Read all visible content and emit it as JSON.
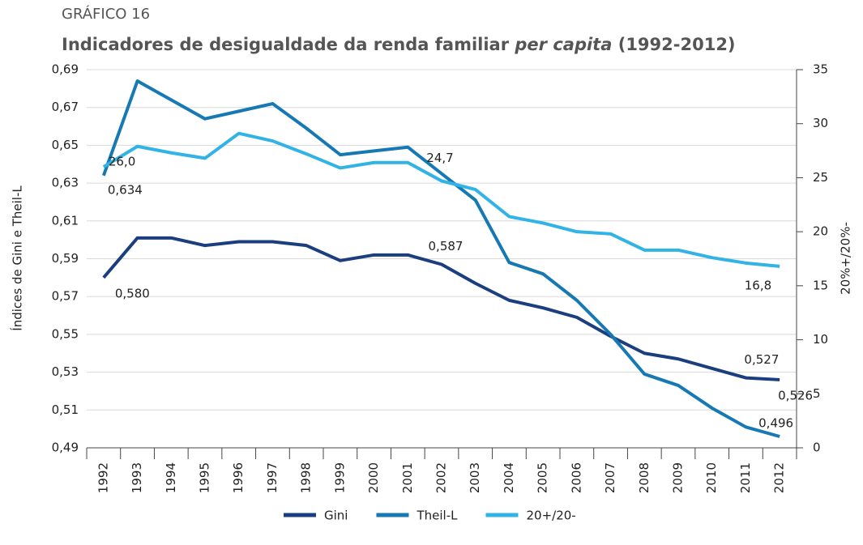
{
  "chart_data": {
    "type": "line",
    "kicker": "GRÁFICO 16",
    "title_parts": [
      "Indicadores de desigualdade da renda familiar",
      "per capita",
      "(1992-2012)"
    ],
    "y_label": "Índices de Gini e Theil-L",
    "y2_label": "20%+/20%-",
    "categories": [
      "1992",
      "1993",
      "1994",
      "1995",
      "1996",
      "1997",
      "1998",
      "1999",
      "2000",
      "2001",
      "2002",
      "2003",
      "2004",
      "2005",
      "2006",
      "2007",
      "2008",
      "2009",
      "2010",
      "2011",
      "2012"
    ],
    "ylim": [
      0.49,
      0.69
    ],
    "yticks": [
      {
        "value": 0.49,
        "label": "0,49"
      },
      {
        "value": 0.51,
        "label": "0,51"
      },
      {
        "value": 0.53,
        "label": "0,53"
      },
      {
        "value": 0.55,
        "label": "0,55"
      },
      {
        "value": 0.57,
        "label": "0,57"
      },
      {
        "value": 0.59,
        "label": "0,59"
      },
      {
        "value": 0.61,
        "label": "0,61"
      },
      {
        "value": 0.63,
        "label": "0,63"
      },
      {
        "value": 0.65,
        "label": "0,65"
      },
      {
        "value": 0.67,
        "label": "0,67"
      },
      {
        "value": 0.69,
        "label": "0,69"
      }
    ],
    "y2lim": [
      0,
      35
    ],
    "y2ticks": [
      0,
      5,
      10,
      15,
      20,
      25,
      30,
      35
    ],
    "grid": true,
    "legend": "bottom",
    "series": [
      {
        "name": "Gini",
        "color": "#1b3f7e",
        "values": [
          0.58,
          0.601,
          0.601,
          0.597,
          0.599,
          0.599,
          0.597,
          0.589,
          0.592,
          0.592,
          0.587,
          0.577,
          0.568,
          0.564,
          0.559,
          0.549,
          0.54,
          0.537,
          0.532,
          0.527,
          0.526
        ],
        "value_labels": [
          "0,580",
          null,
          null,
          null,
          null,
          null,
          null,
          null,
          null,
          null,
          "0,587",
          null,
          null,
          null,
          null,
          null,
          null,
          null,
          null,
          "0,527",
          "0,526"
        ]
      },
      {
        "name": "Theil-L",
        "color": "#1679b4",
        "values": [
          0.634,
          0.684,
          0.674,
          0.664,
          0.668,
          0.672,
          0.659,
          0.645,
          0.647,
          0.649,
          0.635,
          0.621,
          0.588,
          0.582,
          0.568,
          0.55,
          0.529,
          0.523,
          0.511,
          0.501,
          0.496
        ],
        "value_labels": [
          "0,634",
          null,
          null,
          null,
          null,
          null,
          null,
          null,
          null,
          null,
          null,
          null,
          null,
          null,
          null,
          null,
          null,
          null,
          null,
          null,
          "0,496"
        ]
      },
      {
        "name": "20+/20-",
        "color": "#31b3e5",
        "axis": "y2",
        "values": [
          26.0,
          27.9,
          27.3,
          26.8,
          29.1,
          28.4,
          27.2,
          25.9,
          26.4,
          26.4,
          24.7,
          23.9,
          21.4,
          20.8,
          20.0,
          19.8,
          18.3,
          18.3,
          17.6,
          17.1,
          16.8
        ],
        "value_labels": [
          "26,0",
          null,
          null,
          null,
          null,
          null,
          null,
          null,
          null,
          null,
          "24,7",
          null,
          null,
          null,
          null,
          null,
          null,
          null,
          null,
          null,
          "16,8"
        ]
      }
    ]
  }
}
